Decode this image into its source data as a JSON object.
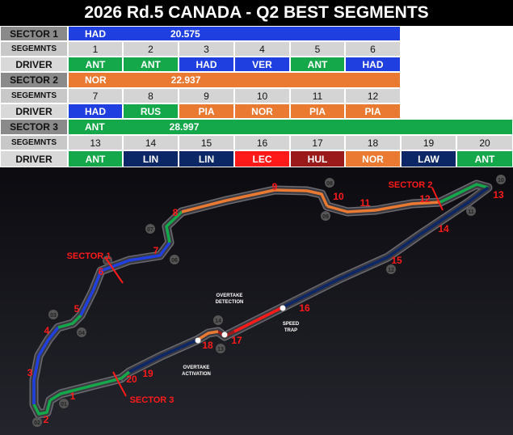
{
  "header": {
    "title": "2026 Rd.5 CANADA - Q2 BEST SEGMENTS"
  },
  "table": {
    "sectors": [
      {
        "label": "SECTOR 1",
        "driver": "HAD",
        "time": "20.575",
        "color": "#1f3fe0",
        "segments_label": "SEGEMNTS",
        "segments": [
          1,
          2,
          3,
          4,
          5,
          6
        ],
        "driver_label": "DRIVER",
        "drivers": [
          {
            "name": "ANT",
            "color": "#14a84b"
          },
          {
            "name": "ANT",
            "color": "#14a84b"
          },
          {
            "name": "HAD",
            "color": "#1f3fe0"
          },
          {
            "name": "VER",
            "color": "#1f3fe0"
          },
          {
            "name": "ANT",
            "color": "#14a84b"
          },
          {
            "name": "HAD",
            "color": "#1f3fe0"
          }
        ]
      },
      {
        "label": "SECTOR 2",
        "driver": "NOR",
        "time": "22.937",
        "color": "#ea7a32",
        "segments_label": "SEGEMNTS",
        "segments": [
          7,
          8,
          9,
          10,
          11,
          12
        ],
        "driver_label": "DRIVER",
        "drivers": [
          {
            "name": "HAD",
            "color": "#1f3fe0"
          },
          {
            "name": "RUS",
            "color": "#14a84b"
          },
          {
            "name": "PIA",
            "color": "#ea7a32"
          },
          {
            "name": "NOR",
            "color": "#ea7a32"
          },
          {
            "name": "PIA",
            "color": "#ea7a32"
          },
          {
            "name": "PIA",
            "color": "#ea7a32"
          }
        ]
      },
      {
        "label": "SECTOR 3",
        "driver": "ANT",
        "time": "28.997",
        "color": "#14a84b",
        "segments_label": "SEGEMNTS",
        "segments": [
          13,
          14,
          15,
          16,
          17,
          18,
          19,
          20
        ],
        "driver_label": "DRIVER",
        "drivers": [
          {
            "name": "ANT",
            "color": "#14a84b"
          },
          {
            "name": "LIN",
            "color": "#0c2766"
          },
          {
            "name": "LIN",
            "color": "#0c2766"
          },
          {
            "name": "LEC",
            "color": "#ff1a1a"
          },
          {
            "name": "HUL",
            "color": "#9a1a1a"
          },
          {
            "name": "NOR",
            "color": "#ea7a32"
          },
          {
            "name": "LAW",
            "color": "#0c2766"
          },
          {
            "name": "ANT",
            "color": "#14a84b"
          }
        ]
      }
    ]
  },
  "map": {
    "segment_labels": [
      1,
      2,
      3,
      4,
      5,
      6,
      7,
      8,
      9,
      10,
      11,
      12,
      13,
      14,
      15,
      16,
      17,
      18,
      19,
      20
    ],
    "turn_labels": [
      "01",
      "02",
      "03",
      "04",
      "05",
      "06",
      "07",
      "08",
      "09",
      "10",
      "11",
      "12",
      "13",
      "14"
    ],
    "sector_labels": [
      "SECTOR 1",
      "SECTOR 2",
      "SECTOR 3"
    ],
    "annotations": [
      [
        "OVERTAKE",
        "DETECTION"
      ],
      [
        "SPEED",
        "TRAP"
      ],
      [
        "OVERTAKE",
        "ACTIVATION"
      ]
    ]
  }
}
